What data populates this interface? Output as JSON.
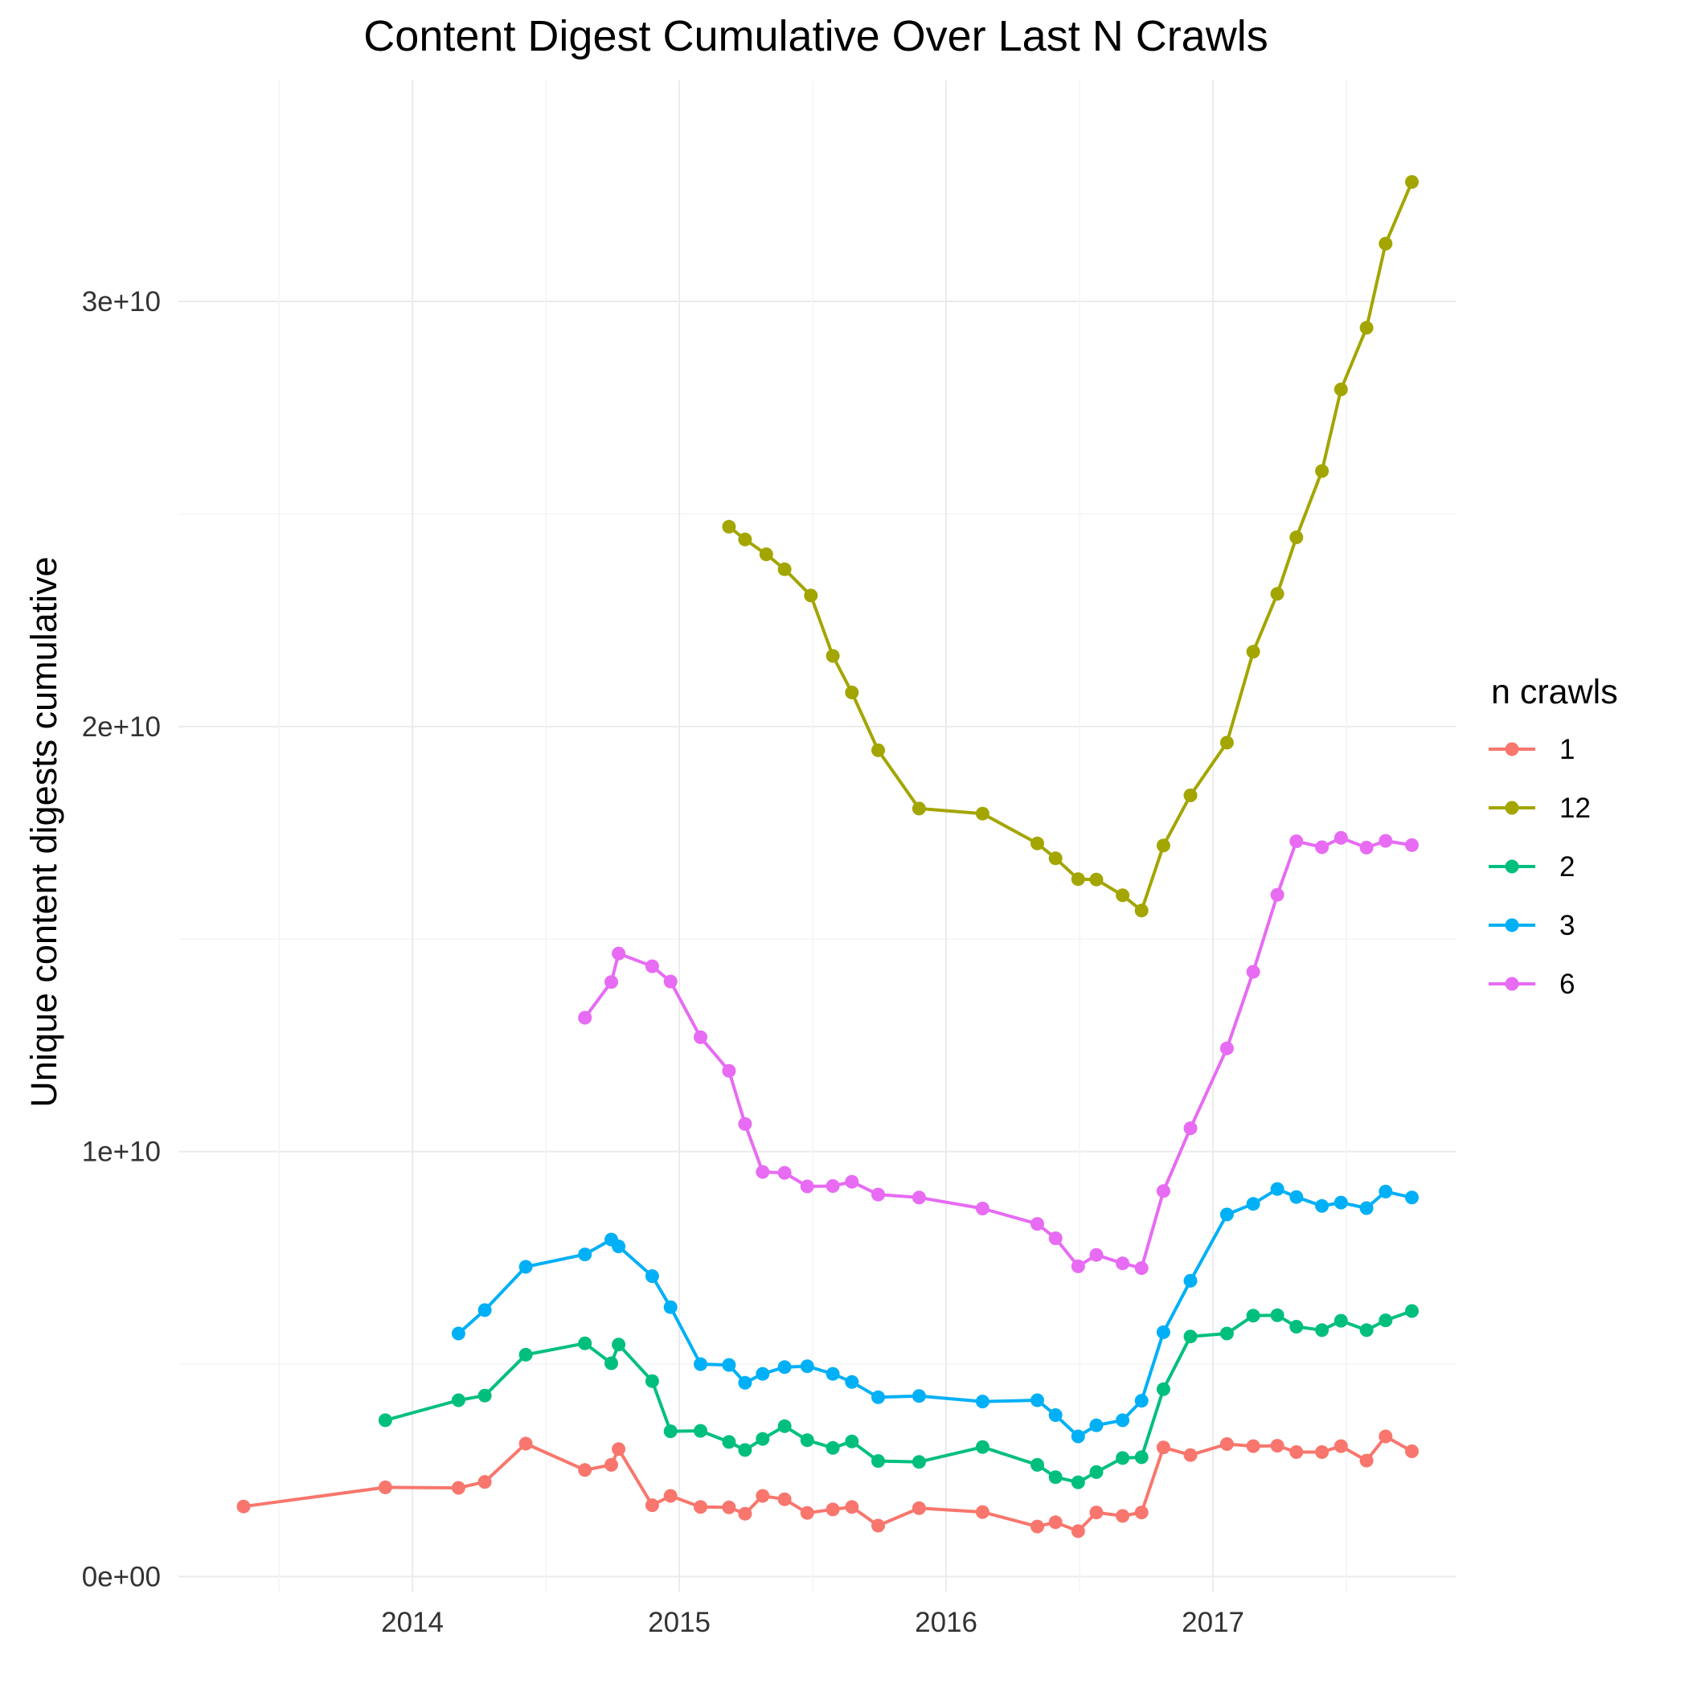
{
  "chart_data": {
    "type": "line",
    "title": "Content Digest Cumulative Over Last N Crawls",
    "xlabel": "",
    "ylabel": "Unique content digests cumulative",
    "x_ticks": [
      "2014",
      "2015",
      "2016",
      "2017"
    ],
    "y_ticks": [
      "0e+00",
      "1e+10",
      "2e+10",
      "3e+10"
    ],
    "xlim": [
      "2013-02-15",
      "2017-11-30"
    ],
    "ylim": [
      -350000000,
      35200000000
    ],
    "grid": true,
    "legend": {
      "title": "n crawls",
      "position": "right"
    },
    "series": [
      {
        "name": "1",
        "color": "#F8766D",
        "points": [
          [
            "2013-05-15",
            1650000000
          ],
          [
            "2013-11-25",
            2100000000
          ],
          [
            "2014-03-05",
            2090000000
          ],
          [
            "2014-04-10",
            2230000000
          ],
          [
            "2014-06-05",
            3130000000
          ],
          [
            "2014-08-25",
            2510000000
          ],
          [
            "2014-09-30",
            2630000000
          ],
          [
            "2014-10-10",
            3000000000
          ],
          [
            "2014-11-25",
            1680000000
          ],
          [
            "2014-12-20",
            1900000000
          ],
          [
            "2015-01-30",
            1640000000
          ],
          [
            "2015-03-10",
            1630000000
          ],
          [
            "2015-04-01",
            1480000000
          ],
          [
            "2015-04-25",
            1900000000
          ],
          [
            "2015-05-25",
            1820000000
          ],
          [
            "2015-06-25",
            1500000000
          ],
          [
            "2015-07-30",
            1580000000
          ],
          [
            "2015-08-25",
            1640000000
          ],
          [
            "2015-09-30",
            1200000000
          ],
          [
            "2015-11-25",
            1610000000
          ],
          [
            "2016-02-20",
            1520000000
          ],
          [
            "2016-05-05",
            1180000000
          ],
          [
            "2016-05-30",
            1280000000
          ],
          [
            "2016-06-30",
            1070000000
          ],
          [
            "2016-07-25",
            1510000000
          ],
          [
            "2016-08-30",
            1430000000
          ],
          [
            "2016-09-25",
            1510000000
          ],
          [
            "2016-10-25",
            3040000000
          ],
          [
            "2016-12-01",
            2860000000
          ],
          [
            "2017-01-20",
            3120000000
          ],
          [
            "2017-02-25",
            3070000000
          ],
          [
            "2017-03-30",
            3080000000
          ],
          [
            "2017-04-25",
            2930000000
          ],
          [
            "2017-05-30",
            2930000000
          ],
          [
            "2017-06-25",
            3070000000
          ],
          [
            "2017-07-30",
            2730000000
          ],
          [
            "2017-08-25",
            3300000000
          ],
          [
            "2017-09-30",
            2950000000
          ]
        ]
      },
      {
        "name": "12",
        "color": "#A3A500",
        "points": [
          [
            "2015-03-10",
            24700000000
          ],
          [
            "2015-04-01",
            24400000000
          ],
          [
            "2015-04-30",
            24050000000
          ],
          [
            "2015-05-25",
            23700000000
          ],
          [
            "2015-06-30",
            23080000000
          ],
          [
            "2015-07-30",
            21660000000
          ],
          [
            "2015-08-25",
            20800000000
          ],
          [
            "2015-09-30",
            19440000000
          ],
          [
            "2015-11-25",
            18070000000
          ],
          [
            "2016-02-20",
            17950000000
          ],
          [
            "2016-05-05",
            17250000000
          ],
          [
            "2016-05-30",
            16900000000
          ],
          [
            "2016-06-30",
            16410000000
          ],
          [
            "2016-07-25",
            16400000000
          ],
          [
            "2016-08-30",
            16030000000
          ],
          [
            "2016-09-25",
            15670000000
          ],
          [
            "2016-10-25",
            17200000000
          ],
          [
            "2016-12-01",
            18380000000
          ],
          [
            "2017-01-20",
            19620000000
          ],
          [
            "2017-02-25",
            21760000000
          ],
          [
            "2017-03-30",
            23120000000
          ],
          [
            "2017-04-25",
            24450000000
          ],
          [
            "2017-05-30",
            26010000000
          ],
          [
            "2017-06-25",
            27930000000
          ],
          [
            "2017-07-30",
            29380000000
          ],
          [
            "2017-08-25",
            31360000000
          ],
          [
            "2017-09-30",
            32810000000
          ]
        ]
      },
      {
        "name": "2",
        "color": "#00BF7D",
        "points": [
          [
            "2013-11-25",
            3680000000
          ],
          [
            "2014-03-05",
            4150000000
          ],
          [
            "2014-04-10",
            4260000000
          ],
          [
            "2014-06-05",
            5220000000
          ],
          [
            "2014-08-25",
            5490000000
          ],
          [
            "2014-09-30",
            5020000000
          ],
          [
            "2014-10-10",
            5460000000
          ],
          [
            "2014-11-25",
            4600000000
          ],
          [
            "2014-12-20",
            3420000000
          ],
          [
            "2015-01-30",
            3430000000
          ],
          [
            "2015-03-10",
            3170000000
          ],
          [
            "2015-04-01",
            2980000000
          ],
          [
            "2015-04-25",
            3240000000
          ],
          [
            "2015-05-25",
            3540000000
          ],
          [
            "2015-06-25",
            3210000000
          ],
          [
            "2015-07-30",
            3030000000
          ],
          [
            "2015-08-25",
            3180000000
          ],
          [
            "2015-09-30",
            2720000000
          ],
          [
            "2015-11-25",
            2700000000
          ],
          [
            "2016-02-20",
            3050000000
          ],
          [
            "2016-05-05",
            2630000000
          ],
          [
            "2016-05-30",
            2340000000
          ],
          [
            "2016-06-30",
            2220000000
          ],
          [
            "2016-07-25",
            2460000000
          ],
          [
            "2016-08-30",
            2790000000
          ],
          [
            "2016-09-25",
            2810000000
          ],
          [
            "2016-10-25",
            4410000000
          ],
          [
            "2016-12-01",
            5650000000
          ],
          [
            "2017-01-20",
            5720000000
          ],
          [
            "2017-02-25",
            6140000000
          ],
          [
            "2017-03-30",
            6150000000
          ],
          [
            "2017-04-25",
            5880000000
          ],
          [
            "2017-05-30",
            5800000000
          ],
          [
            "2017-06-25",
            6020000000
          ],
          [
            "2017-07-30",
            5800000000
          ],
          [
            "2017-08-25",
            6030000000
          ],
          [
            "2017-09-30",
            6250000000
          ]
        ]
      },
      {
        "name": "3",
        "color": "#00B0F6",
        "points": [
          [
            "2014-03-05",
            5720000000
          ],
          [
            "2014-04-10",
            6270000000
          ],
          [
            "2014-06-05",
            7290000000
          ],
          [
            "2014-08-25",
            7580000000
          ],
          [
            "2014-09-30",
            7930000000
          ],
          [
            "2014-10-10",
            7770000000
          ],
          [
            "2014-11-25",
            7070000000
          ],
          [
            "2014-12-20",
            6340000000
          ],
          [
            "2015-01-30",
            5000000000
          ],
          [
            "2015-03-10",
            4980000000
          ],
          [
            "2015-04-01",
            4560000000
          ],
          [
            "2015-04-25",
            4770000000
          ],
          [
            "2015-05-25",
            4930000000
          ],
          [
            "2015-06-25",
            4950000000
          ],
          [
            "2015-07-30",
            4770000000
          ],
          [
            "2015-08-25",
            4580000000
          ],
          [
            "2015-09-30",
            4220000000
          ],
          [
            "2015-11-25",
            4250000000
          ],
          [
            "2016-02-20",
            4120000000
          ],
          [
            "2016-05-05",
            4150000000
          ],
          [
            "2016-05-30",
            3800000000
          ],
          [
            "2016-06-30",
            3300000000
          ],
          [
            "2016-07-25",
            3560000000
          ],
          [
            "2016-08-30",
            3680000000
          ],
          [
            "2016-09-25",
            4140000000
          ],
          [
            "2016-10-25",
            5750000000
          ],
          [
            "2016-12-01",
            6960000000
          ],
          [
            "2017-01-20",
            8520000000
          ],
          [
            "2017-02-25",
            8770000000
          ],
          [
            "2017-03-30",
            9120000000
          ],
          [
            "2017-04-25",
            8930000000
          ],
          [
            "2017-05-30",
            8720000000
          ],
          [
            "2017-06-25",
            8800000000
          ],
          [
            "2017-07-30",
            8670000000
          ],
          [
            "2017-08-25",
            9060000000
          ],
          [
            "2017-09-30",
            8920000000
          ]
        ]
      },
      {
        "name": "6",
        "color": "#E76BF3",
        "points": [
          [
            "2014-08-25",
            13150000000
          ],
          [
            "2014-09-30",
            13990000000
          ],
          [
            "2014-10-10",
            14660000000
          ],
          [
            "2014-11-25",
            14360000000
          ],
          [
            "2014-12-20",
            14000000000
          ],
          [
            "2015-01-30",
            12690000000
          ],
          [
            "2015-03-10",
            11900000000
          ],
          [
            "2015-04-01",
            10650000000
          ],
          [
            "2015-04-25",
            9520000000
          ],
          [
            "2015-05-25",
            9500000000
          ],
          [
            "2015-06-25",
            9180000000
          ],
          [
            "2015-07-30",
            9190000000
          ],
          [
            "2015-08-25",
            9290000000
          ],
          [
            "2015-09-30",
            8990000000
          ],
          [
            "2015-11-25",
            8920000000
          ],
          [
            "2016-02-20",
            8660000000
          ],
          [
            "2016-05-05",
            8300000000
          ],
          [
            "2016-05-30",
            7960000000
          ],
          [
            "2016-06-30",
            7300000000
          ],
          [
            "2016-07-25",
            7570000000
          ],
          [
            "2016-08-30",
            7370000000
          ],
          [
            "2016-09-25",
            7260000000
          ],
          [
            "2016-10-25",
            9070000000
          ],
          [
            "2016-12-01",
            10550000000
          ],
          [
            "2017-01-20",
            12430000000
          ],
          [
            "2017-02-25",
            14230000000
          ],
          [
            "2017-03-30",
            16040000000
          ],
          [
            "2017-04-25",
            17300000000
          ],
          [
            "2017-05-30",
            17160000000
          ],
          [
            "2017-06-25",
            17380000000
          ],
          [
            "2017-07-30",
            17150000000
          ],
          [
            "2017-08-25",
            17310000000
          ],
          [
            "2017-09-30",
            17210000000
          ]
        ]
      }
    ]
  }
}
